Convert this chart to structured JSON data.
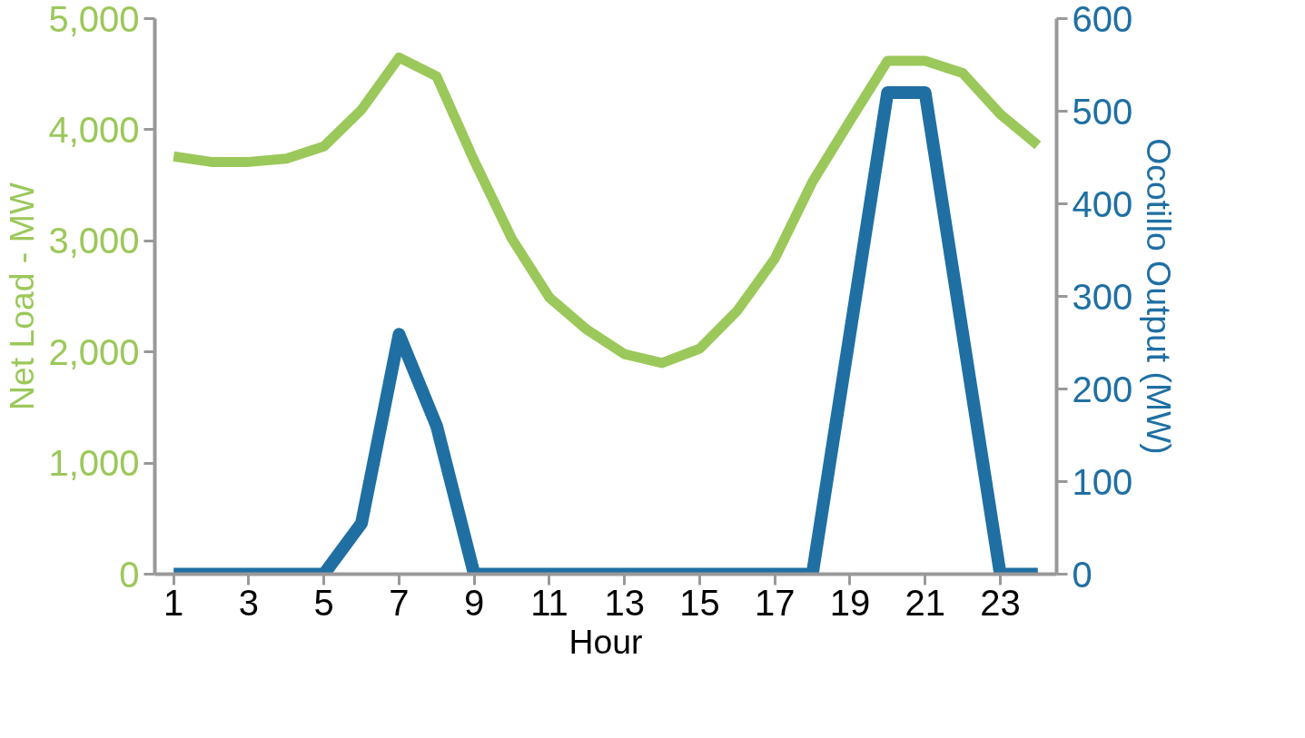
{
  "chart_data": {
    "type": "line",
    "xlabel": "Hour",
    "ylabel": "Net Load - MW",
    "y2label": "Ocotillo Output (MW)",
    "x": [
      1,
      2,
      3,
      4,
      5,
      6,
      7,
      8,
      9,
      10,
      11,
      12,
      13,
      14,
      15,
      16,
      17,
      18,
      19,
      20,
      21,
      22,
      23,
      24
    ],
    "series": [
      {
        "color": "#9bc85a",
        "values": [
          3760,
          3710,
          3710,
          3740,
          3850,
          4180,
          4650,
          4480,
          3720,
          3020,
          2490,
          2200,
          1980,
          1900,
          2030,
          2370,
          2840,
          3530,
          4080,
          4620,
          4620,
          4510,
          4140,
          3860
        ]
      },
      {
        "color": "#1f6fa3",
        "axis": "y2",
        "values": [
          0,
          0,
          0,
          0,
          0,
          55,
          259,
          160,
          0,
          0,
          0,
          0,
          0,
          0,
          0,
          0,
          0,
          0,
          260,
          520,
          520,
          260,
          0,
          0
        ]
      }
    ],
    "xlim": [
      0.5,
      24.5
    ],
    "xticks": [
      1,
      3,
      5,
      7,
      9,
      11,
      13,
      15,
      17,
      19,
      21,
      23
    ],
    "ylim": [
      0,
      5000
    ],
    "yticks": [
      0,
      {
        "value": 1000,
        "label": "1,000"
      },
      {
        "value": 2000,
        "label": "2,000"
      },
      {
        "value": 3000,
        "label": "3,000"
      },
      {
        "value": 4000,
        "label": "4,000"
      },
      {
        "value": 5000,
        "label": "5,000"
      }
    ],
    "y2lim": [
      0,
      600
    ],
    "y2ticks": [
      0,
      100,
      200,
      300,
      400,
      500,
      600
    ],
    "grid": false,
    "marker": "none",
    "line_style": "solid"
  }
}
